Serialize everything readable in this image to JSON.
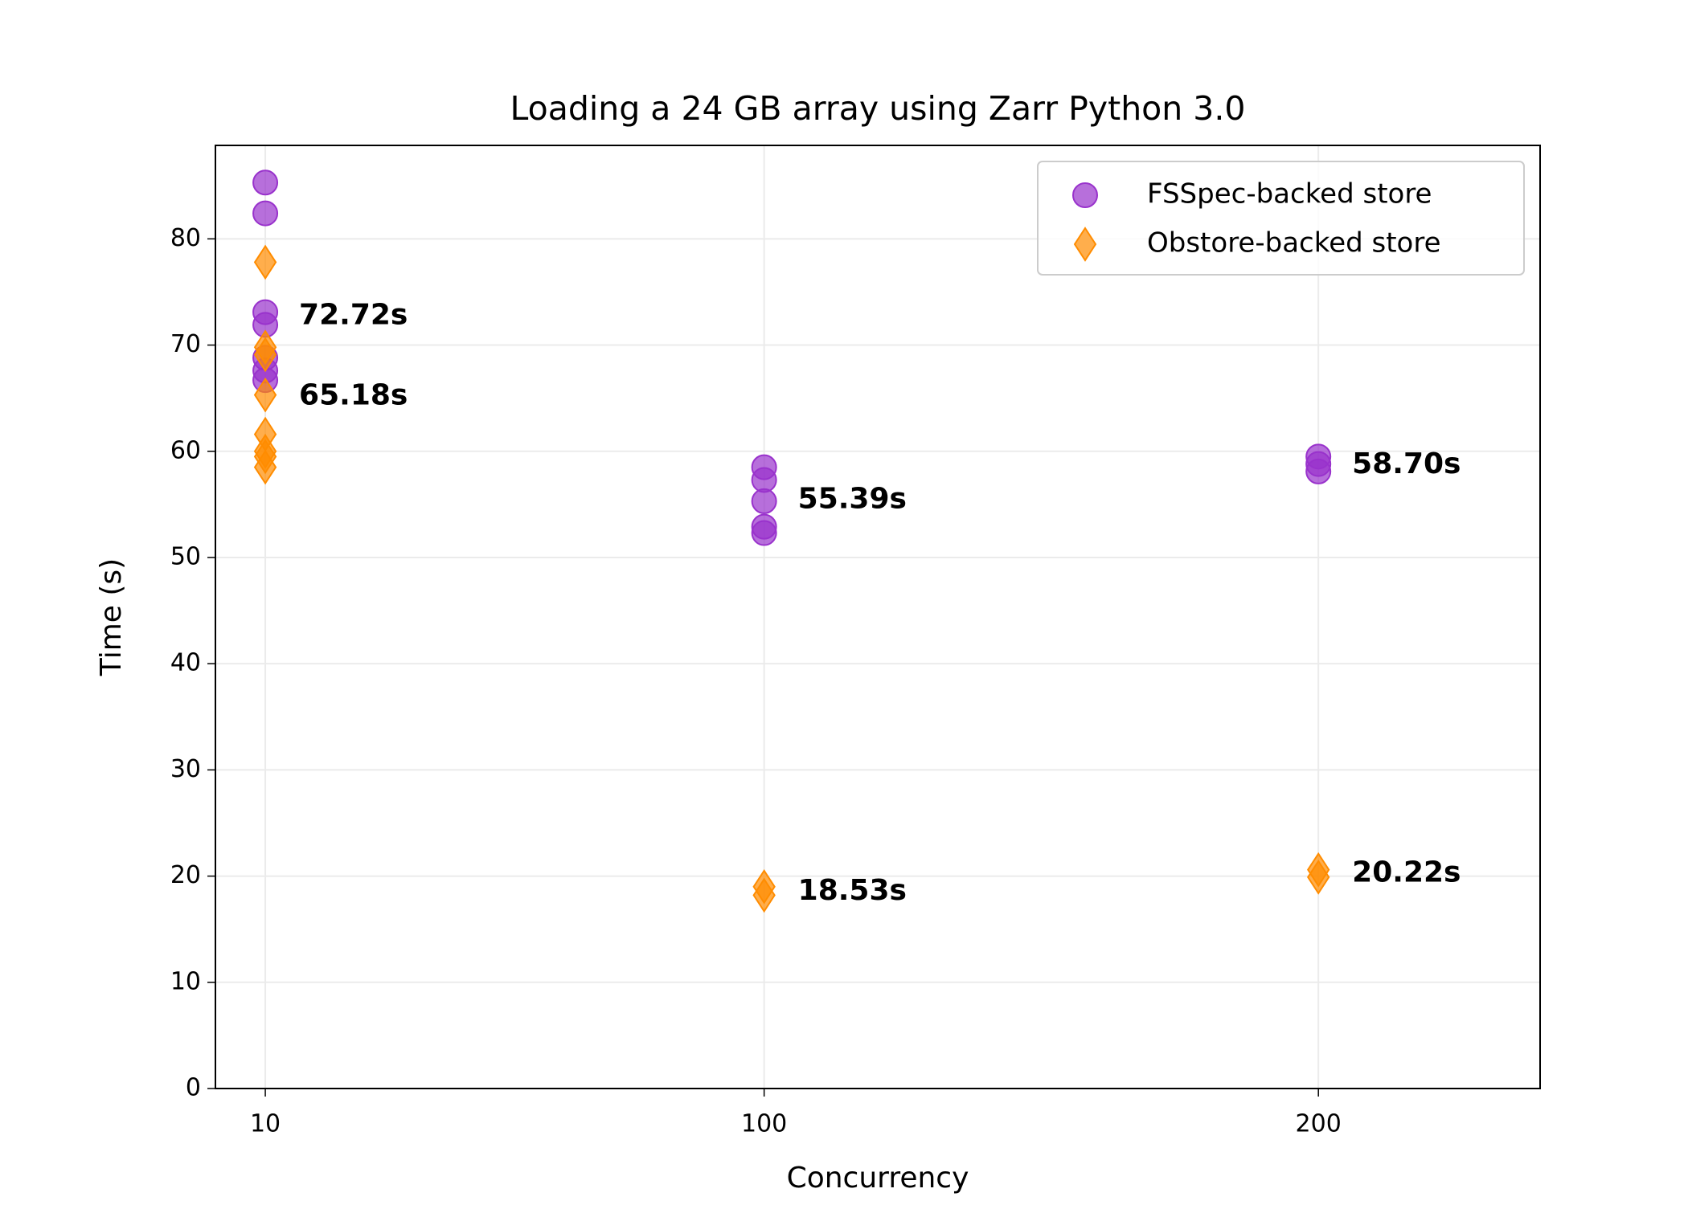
{
  "chart_data": {
    "type": "scatter",
    "title": "Loading a 24 GB array using Zarr Python 3.0",
    "x_label": "Concurrency",
    "y_label": "Time (s)",
    "xlim": [
      1,
      240
    ],
    "xticks": [
      10,
      100,
      200
    ],
    "ylim": [
      0,
      88.8
    ],
    "yticks": [
      0,
      10,
      20,
      30,
      40,
      50,
      60,
      70,
      80
    ],
    "grid": true,
    "legend": "upper right",
    "series": [
      {
        "name": "FSSpec-backed store",
        "color": "#9932cc",
        "marker": "circle",
        "x": [
          10,
          10,
          10,
          10,
          10,
          10,
          10,
          100,
          100,
          100,
          100,
          100,
          200,
          200,
          200
        ],
        "values": [
          85.3,
          82.4,
          73.1,
          71.9,
          68.8,
          67.6,
          66.7,
          58.5,
          57.3,
          55.3,
          52.9,
          52.3,
          59.5,
          58.8,
          58.1
        ]
      },
      {
        "name": "Obstore-backed store",
        "color": "#ff8c00",
        "marker": "diamond",
        "x": [
          10,
          10,
          10,
          10,
          10,
          10,
          10,
          10,
          100,
          100,
          200,
          200
        ],
        "values": [
          77.8,
          69.8,
          69.1,
          65.3,
          61.6,
          60.0,
          59.5,
          58.5,
          19.0,
          18.2,
          20.6,
          19.9
        ]
      }
    ],
    "annotations": [
      {
        "text": "72.72s",
        "x": 10,
        "y": 72.72,
        "color": "#9932cc"
      },
      {
        "text": "65.18s",
        "x": 10,
        "y": 65.18,
        "color": "#ff8c00"
      },
      {
        "text": "55.39s",
        "x": 100,
        "y": 55.39,
        "color": "#9932cc"
      },
      {
        "text": "18.53s",
        "x": 100,
        "y": 18.53,
        "color": "#ff8c00"
      },
      {
        "text": "58.70s",
        "x": 200,
        "y": 58.7,
        "color": "#9932cc"
      },
      {
        "text": "20.22s",
        "x": 200,
        "y": 20.22,
        "color": "#ff8c00"
      }
    ]
  }
}
